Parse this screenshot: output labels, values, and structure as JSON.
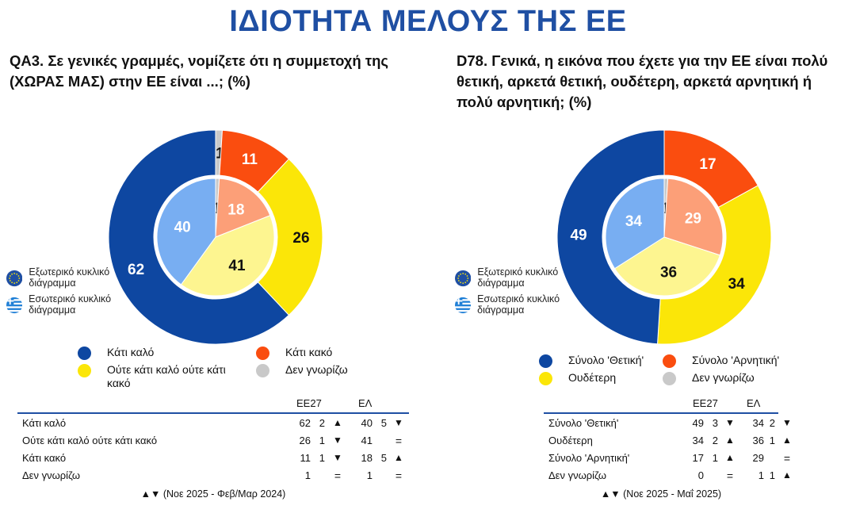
{
  "page_title": "ΙΔΙΟΤΗΤΑ ΜΕΛΟΥΣ ΤΗΣ ΕΕ",
  "colors": {
    "title": "#1f4fa3",
    "dark_blue": "#0e47a1",
    "light_blue": "#78aef2",
    "orange_red": "#fa4d0f",
    "light_orange": "#fc9f78",
    "yellow": "#fbe608",
    "light_yellow": "#fdf590",
    "grey": "#c9c9c9"
  },
  "circle_key": {
    "outer_label": "Εξωτερικό κυκλικό διάγραμμα",
    "inner_label": "Εσωτερικό κυκλικό διάγραμμα",
    "outer_icon": "eu-flag-icon",
    "inner_icon": "greek-flag-icon"
  },
  "chart_data": [
    {
      "type": "pie",
      "title": "QA3. Σε γενικές γραμμές, νομίζετε ότι η συμμετοχή της (ΧΩΡΑΣ ΜΑΣ) στην ΕΕ είναι ...; (%)",
      "categories": [
        "Δεν γνωρίζω",
        "Κάτι κακό",
        "Ούτε κάτι καλό ούτε κάτι κακό",
        "Κάτι καλό"
      ],
      "series": [
        {
          "name": "ΕΕ27",
          "ring": "outer",
          "values": [
            1,
            11,
            26,
            62
          ]
        },
        {
          "name": "ΕΛ",
          "ring": "inner",
          "values": [
            1,
            18,
            41,
            40
          ]
        }
      ],
      "legend": [
        {
          "label": "Κάτι καλό",
          "color": "#0e47a1"
        },
        {
          "label": "Κάτι κακό",
          "color": "#fa4d0f"
        },
        {
          "label": "Ούτε κάτι καλό ούτε κάτι κακό",
          "color": "#fbe608"
        },
        {
          "label": "Δεν γνωρίζω",
          "color": "#c9c9c9"
        }
      ],
      "table": {
        "headers": [
          "ΕΕ27",
          "ΕΛ"
        ],
        "rows": [
          {
            "label": "Κάτι καλό",
            "eu": "62",
            "eu_chg": "2",
            "eu_dir": "▲",
            "el": "40",
            "el_chg": "5",
            "el_dir": "▼"
          },
          {
            "label": "Ούτε κάτι καλό ούτε κάτι κακό",
            "eu": "26",
            "eu_chg": "1",
            "eu_dir": "▼",
            "el": "41",
            "el_chg": "",
            "el_dir": "="
          },
          {
            "label": "Κάτι κακό",
            "eu": "11",
            "eu_chg": "1",
            "eu_dir": "▼",
            "el": "18",
            "el_chg": "5",
            "el_dir": "▲"
          },
          {
            "label": "Δεν γνωρίζω",
            "eu": "1",
            "eu_chg": "",
            "eu_dir": "=",
            "el": "1",
            "el_chg": "",
            "el_dir": "="
          }
        ],
        "footnote": "▲▼ (Νοε 2025 - Φεβ/Μαρ 2024)"
      }
    },
    {
      "type": "pie",
      "title": "D78. Γενικά, η εικόνα που έχετε για την ΕΕ είναι πολύ θετική, αρκετά θετική, ουδέτερη, αρκετά αρνητική ή πολύ αρνητική; (%)",
      "categories": [
        "Δεν γνωρίζω",
        "Σύνολο 'Αρνητική'",
        "Ουδέτερη",
        "Σύνολο 'Θετική'"
      ],
      "series": [
        {
          "name": "ΕΕ27",
          "ring": "outer",
          "values": [
            0,
            17,
            34,
            49
          ]
        },
        {
          "name": "ΕΛ",
          "ring": "inner",
          "values": [
            1,
            29,
            36,
            34
          ]
        }
      ],
      "legend": [
        {
          "label": "Σύνολο 'Θετική'",
          "color": "#0e47a1"
        },
        {
          "label": "Σύνολο 'Αρνητική'",
          "color": "#fa4d0f"
        },
        {
          "label": "Ουδέτερη",
          "color": "#fbe608"
        },
        {
          "label": "Δεν γνωρίζω",
          "color": "#c9c9c9"
        }
      ],
      "table": {
        "headers": [
          "ΕΕ27",
          "ΕΛ"
        ],
        "rows": [
          {
            "label": "Σύνολο 'Θετική'",
            "eu": "49",
            "eu_chg": "3",
            "eu_dir": "▼",
            "el": "34",
            "el_chg": "2",
            "el_dir": "▼"
          },
          {
            "label": "Ουδέτερη",
            "eu": "34",
            "eu_chg": "2",
            "eu_dir": "▲",
            "el": "36",
            "el_chg": "1",
            "el_dir": "▲"
          },
          {
            "label": "Σύνολο 'Αρνητική'",
            "eu": "17",
            "eu_chg": "1",
            "eu_dir": "▲",
            "el": "29",
            "el_chg": "",
            "el_dir": "="
          },
          {
            "label": "Δεν γνωρίζω",
            "eu": "0",
            "eu_chg": "",
            "eu_dir": "=",
            "el": "1",
            "el_chg": "1",
            "el_dir": "▲"
          }
        ],
        "footnote": "▲▼ (Νοε 2025 - Μαΐ 2025)"
      }
    }
  ]
}
